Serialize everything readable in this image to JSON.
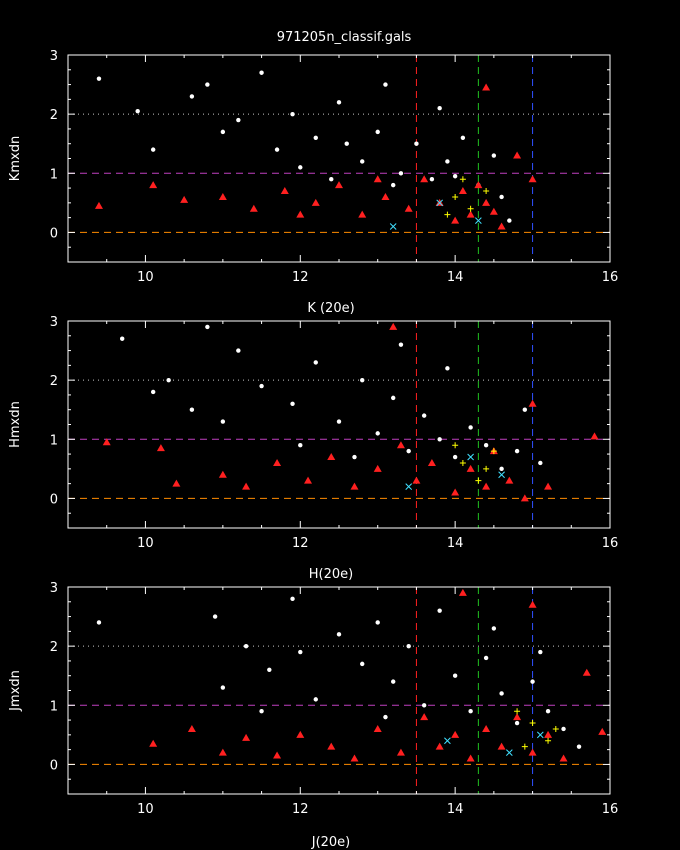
{
  "title": "971205n_classif.gals",
  "chart_data": [
    {
      "type": "scatter",
      "xlabel": "K (20e)",
      "ylabel": "Kmxdn",
      "xlim": [
        9,
        16
      ],
      "ylim": [
        -0.5,
        3
      ],
      "xticks": [
        10,
        12,
        14,
        16
      ],
      "yticks": [
        0,
        1,
        2,
        3
      ],
      "reference_lines": {
        "horizontal": [
          {
            "y": 2,
            "color": "#c8c8c8",
            "style": "dotted"
          },
          {
            "y": 1,
            "color": "#c040c0",
            "style": "dashed"
          },
          {
            "y": 0,
            "color": "#ff8c00",
            "style": "dashed"
          }
        ],
        "vertical": [
          {
            "x": 13.5,
            "color": "#ff2020",
            "style": "dashed"
          },
          {
            "x": 14.3,
            "color": "#20c020",
            "style": "dashed"
          },
          {
            "x": 15.0,
            "color": "#3050ff",
            "style": "dashed"
          }
        ]
      },
      "series": [
        {
          "marker": "dot",
          "color": "#ffffff",
          "points": [
            [
              9.4,
              2.6
            ],
            [
              9.9,
              2.05
            ],
            [
              10.1,
              1.4
            ],
            [
              10.6,
              2.3
            ],
            [
              11.2,
              1.9
            ],
            [
              11.5,
              2.7
            ],
            [
              11.9,
              2.0
            ],
            [
              12.2,
              1.6
            ],
            [
              12.5,
              2.2
            ],
            [
              12.8,
              1.2
            ],
            [
              13.0,
              1.7
            ],
            [
              13.1,
              2.5
            ],
            [
              13.3,
              1.0
            ],
            [
              13.5,
              1.5
            ],
            [
              13.7,
              0.9
            ],
            [
              13.8,
              2.1
            ],
            [
              13.9,
              1.2
            ],
            [
              14.0,
              0.95
            ],
            [
              14.1,
              1.6
            ],
            [
              14.3,
              0.8
            ],
            [
              14.5,
              1.3
            ],
            [
              14.6,
              0.6
            ],
            [
              12.4,
              0.9
            ],
            [
              12.0,
              1.1
            ],
            [
              11.7,
              1.4
            ],
            [
              10.8,
              2.5
            ],
            [
              11.0,
              1.7
            ],
            [
              12.6,
              1.5
            ],
            [
              13.2,
              0.8
            ],
            [
              14.7,
              0.2
            ]
          ]
        },
        {
          "marker": "triangle",
          "color": "#ff2020",
          "points": [
            [
              9.4,
              0.45
            ],
            [
              10.1,
              0.8
            ],
            [
              10.5,
              0.55
            ],
            [
              11.0,
              0.6
            ],
            [
              11.4,
              0.4
            ],
            [
              11.8,
              0.7
            ],
            [
              12.2,
              0.5
            ],
            [
              12.5,
              0.8
            ],
            [
              12.8,
              0.3
            ],
            [
              13.1,
              0.6
            ],
            [
              13.4,
              0.4
            ],
            [
              13.6,
              0.9
            ],
            [
              13.8,
              0.5
            ],
            [
              14.0,
              0.2
            ],
            [
              14.1,
              0.7
            ],
            [
              14.2,
              0.3
            ],
            [
              14.3,
              0.8
            ],
            [
              14.4,
              0.5
            ],
            [
              14.5,
              0.35
            ],
            [
              14.6,
              0.1
            ],
            [
              14.4,
              2.45
            ],
            [
              14.8,
              1.3
            ],
            [
              15.0,
              0.9
            ],
            [
              12.0,
              0.3
            ],
            [
              13.0,
              0.9
            ]
          ]
        },
        {
          "marker": "cross",
          "color": "#ffff00",
          "points": [
            [
              14.0,
              0.6
            ],
            [
              14.2,
              0.4
            ],
            [
              14.4,
              0.7
            ],
            [
              13.9,
              0.3
            ],
            [
              14.1,
              0.9
            ]
          ]
        },
        {
          "marker": "x",
          "color": "#40e0ff",
          "points": [
            [
              13.2,
              0.1
            ],
            [
              13.8,
              0.5
            ],
            [
              14.3,
              0.2
            ]
          ]
        }
      ]
    },
    {
      "type": "scatter",
      "xlabel": "H(20e)",
      "ylabel": "Hmxdn",
      "xlim": [
        9,
        16
      ],
      "ylim": [
        -0.5,
        3
      ],
      "xticks": [
        10,
        12,
        14,
        16
      ],
      "yticks": [
        0,
        1,
        2,
        3
      ],
      "reference_lines": {
        "horizontal": [
          {
            "y": 2,
            "color": "#c8c8c8",
            "style": "dotted"
          },
          {
            "y": 1,
            "color": "#c040c0",
            "style": "dashed"
          },
          {
            "y": 0,
            "color": "#ff8c00",
            "style": "dashed"
          }
        ],
        "vertical": [
          {
            "x": 13.5,
            "color": "#ff2020",
            "style": "dashed"
          },
          {
            "x": 14.3,
            "color": "#20c020",
            "style": "dashed"
          },
          {
            "x": 15.0,
            "color": "#3050ff",
            "style": "dashed"
          }
        ]
      },
      "series": [
        {
          "marker": "dot",
          "color": "#ffffff",
          "points": [
            [
              9.7,
              2.7
            ],
            [
              10.1,
              1.8
            ],
            [
              10.3,
              2.0
            ],
            [
              10.8,
              2.9
            ],
            [
              11.2,
              2.5
            ],
            [
              11.5,
              1.9
            ],
            [
              11.9,
              1.6
            ],
            [
              12.2,
              2.3
            ],
            [
              12.5,
              1.3
            ],
            [
              12.8,
              2.0
            ],
            [
              13.0,
              1.1
            ],
            [
              13.2,
              1.7
            ],
            [
              13.4,
              0.8
            ],
            [
              13.6,
              1.4
            ],
            [
              13.8,
              1.0
            ],
            [
              13.9,
              2.2
            ],
            [
              14.0,
              0.7
            ],
            [
              14.2,
              1.2
            ],
            [
              14.4,
              0.9
            ],
            [
              14.6,
              0.5
            ],
            [
              14.8,
              0.8
            ],
            [
              15.1,
              0.6
            ],
            [
              12.0,
              0.9
            ],
            [
              11.0,
              1.3
            ],
            [
              10.6,
              1.5
            ],
            [
              12.7,
              0.7
            ],
            [
              13.3,
              2.6
            ],
            [
              14.9,
              1.5
            ]
          ]
        },
        {
          "marker": "triangle",
          "color": "#ff2020",
          "points": [
            [
              9.5,
              0.95
            ],
            [
              10.2,
              0.85
            ],
            [
              10.4,
              0.25
            ],
            [
              11.0,
              0.4
            ],
            [
              11.3,
              0.2
            ],
            [
              11.7,
              0.6
            ],
            [
              12.1,
              0.3
            ],
            [
              12.4,
              0.7
            ],
            [
              12.7,
              0.2
            ],
            [
              13.0,
              0.5
            ],
            [
              13.3,
              0.9
            ],
            [
              13.5,
              0.3
            ],
            [
              13.7,
              0.6
            ],
            [
              14.0,
              0.1
            ],
            [
              14.2,
              0.5
            ],
            [
              14.4,
              0.2
            ],
            [
              14.5,
              0.8
            ],
            [
              14.7,
              0.3
            ],
            [
              14.9,
              0.0
            ],
            [
              15.2,
              0.2
            ],
            [
              15.8,
              1.05
            ],
            [
              13.2,
              2.9
            ],
            [
              15.0,
              1.6
            ]
          ]
        },
        {
          "marker": "cross",
          "color": "#ffff00",
          "points": [
            [
              14.1,
              0.6
            ],
            [
              14.3,
              0.3
            ],
            [
              14.5,
              0.8
            ],
            [
              14.0,
              0.9
            ],
            [
              14.4,
              0.5
            ]
          ]
        },
        {
          "marker": "x",
          "color": "#40e0ff",
          "points": [
            [
              13.4,
              0.2
            ],
            [
              14.2,
              0.7
            ],
            [
              14.6,
              0.4
            ]
          ]
        }
      ]
    },
    {
      "type": "scatter",
      "xlabel": "J(20e)",
      "ylabel": "Jmxdn",
      "xlim": [
        9,
        16
      ],
      "ylim": [
        -0.5,
        3
      ],
      "xticks": [
        10,
        12,
        14,
        16
      ],
      "yticks": [
        0,
        1,
        2,
        3
      ],
      "reference_lines": {
        "horizontal": [
          {
            "y": 2,
            "color": "#c8c8c8",
            "style": "dotted"
          },
          {
            "y": 1,
            "color": "#c040c0",
            "style": "dashed"
          },
          {
            "y": 0,
            "color": "#ff8c00",
            "style": "dashed"
          }
        ],
        "vertical": [
          {
            "x": 13.5,
            "color": "#ff2020",
            "style": "dashed"
          },
          {
            "x": 14.3,
            "color": "#20c020",
            "style": "dashed"
          },
          {
            "x": 15.0,
            "color": "#3050ff",
            "style": "dashed"
          }
        ]
      },
      "series": [
        {
          "marker": "dot",
          "color": "#ffffff",
          "points": [
            [
              9.4,
              2.4
            ],
            [
              10.9,
              2.5
            ],
            [
              11.0,
              1.3
            ],
            [
              11.3,
              2.0
            ],
            [
              11.6,
              1.6
            ],
            [
              11.9,
              2.8
            ],
            [
              12.2,
              1.1
            ],
            [
              12.5,
              2.2
            ],
            [
              12.8,
              1.7
            ],
            [
              13.0,
              2.4
            ],
            [
              13.2,
              1.4
            ],
            [
              13.4,
              2.0
            ],
            [
              13.6,
              1.0
            ],
            [
              13.8,
              2.6
            ],
            [
              14.0,
              1.5
            ],
            [
              14.2,
              0.9
            ],
            [
              14.4,
              1.8
            ],
            [
              14.6,
              1.2
            ],
            [
              14.8,
              0.7
            ],
            [
              15.0,
              1.4
            ],
            [
              15.2,
              0.9
            ],
            [
              15.4,
              0.6
            ],
            [
              15.6,
              0.3
            ],
            [
              12.0,
              1.9
            ],
            [
              11.5,
              0.9
            ],
            [
              13.1,
              0.8
            ],
            [
              14.5,
              2.3
            ],
            [
              15.1,
              1.9
            ]
          ]
        },
        {
          "marker": "triangle",
          "color": "#ff2020",
          "points": [
            [
              10.1,
              0.35
            ],
            [
              10.6,
              0.6
            ],
            [
              11.0,
              0.2
            ],
            [
              11.3,
              0.45
            ],
            [
              11.7,
              0.15
            ],
            [
              12.0,
              0.5
            ],
            [
              12.4,
              0.3
            ],
            [
              12.7,
              0.1
            ],
            [
              13.0,
              0.6
            ],
            [
              13.3,
              0.2
            ],
            [
              13.6,
              0.8
            ],
            [
              13.8,
              0.3
            ],
            [
              14.0,
              0.5
            ],
            [
              14.2,
              0.1
            ],
            [
              14.4,
              0.6
            ],
            [
              14.6,
              0.3
            ],
            [
              14.8,
              0.8
            ],
            [
              15.0,
              0.2
            ],
            [
              15.2,
              0.5
            ],
            [
              15.4,
              0.1
            ],
            [
              15.7,
              1.55
            ],
            [
              15.0,
              2.7
            ],
            [
              15.9,
              0.55
            ],
            [
              14.1,
              2.9
            ]
          ]
        },
        {
          "marker": "cross",
          "color": "#ffff00",
          "points": [
            [
              15.0,
              0.7
            ],
            [
              15.2,
              0.4
            ],
            [
              14.8,
              0.9
            ],
            [
              15.3,
              0.6
            ],
            [
              14.9,
              0.3
            ]
          ]
        },
        {
          "marker": "x",
          "color": "#40e0ff",
          "points": [
            [
              14.7,
              0.2
            ],
            [
              15.1,
              0.5
            ],
            [
              13.9,
              0.4
            ]
          ]
        }
      ]
    }
  ]
}
